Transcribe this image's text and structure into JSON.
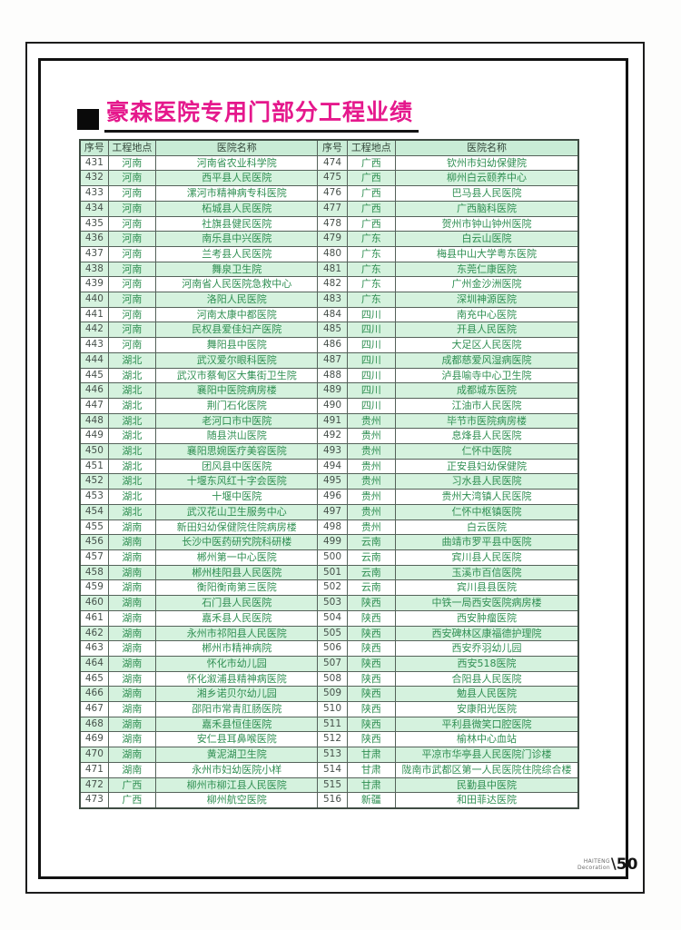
{
  "page": {
    "title": "豪森医院专用门部分工程业绩"
  },
  "footer": {
    "brand_top": "HAITENG",
    "brand_bottom": "Decoration",
    "page_number": "50"
  },
  "colors": {
    "title_magenta": "#e5188c",
    "header_bg": "#c9ecd6",
    "alt_row_bg": "#d5f2de",
    "table_text_green": "#2f8f52",
    "frame_black": "#111111"
  },
  "table": {
    "headers": [
      "序号",
      "工程地点",
      "医院名称"
    ],
    "left_rows": [
      [
        "431",
        "河南",
        "河南省农业科学院"
      ],
      [
        "432",
        "河南",
        "西平县人民医院"
      ],
      [
        "433",
        "河南",
        "漯河市精神病专科医院"
      ],
      [
        "434",
        "河南",
        "柘城县人民医院"
      ],
      [
        "435",
        "河南",
        "社旗县健民医院"
      ],
      [
        "436",
        "河南",
        "南乐县中兴医院"
      ],
      [
        "437",
        "河南",
        "兰考县人民医院"
      ],
      [
        "438",
        "河南",
        "舞泉卫生院"
      ],
      [
        "439",
        "河南",
        "河南省人民医院急救中心"
      ],
      [
        "440",
        "河南",
        "洛阳人民医院"
      ],
      [
        "441",
        "河南",
        "河南太康中都医院"
      ],
      [
        "442",
        "河南",
        "民权县爱佳妇产医院"
      ],
      [
        "443",
        "河南",
        "舞阳县中医院"
      ],
      [
        "444",
        "湖北",
        "武汉爱尔眼科医院"
      ],
      [
        "445",
        "湖北",
        "武汉市蔡甸区大集街卫生院"
      ],
      [
        "446",
        "湖北",
        "襄阳中医院病房楼"
      ],
      [
        "447",
        "湖北",
        "荆门石化医院"
      ],
      [
        "448",
        "湖北",
        "老河口市中医院"
      ],
      [
        "449",
        "湖北",
        "随县洪山医院"
      ],
      [
        "450",
        "湖北",
        "襄阳思婉医疗美容医院"
      ],
      [
        "451",
        "湖北",
        "团风县中医医院"
      ],
      [
        "452",
        "湖北",
        "十堰东风红十字会医院"
      ],
      [
        "453",
        "湖北",
        "十堰中医院"
      ],
      [
        "454",
        "湖北",
        "武汉花山卫生服务中心"
      ],
      [
        "455",
        "湖南",
        "新田妇幼保健院住院病房楼"
      ],
      [
        "456",
        "湖南",
        "长沙中医药研究院科研楼"
      ],
      [
        "457",
        "湖南",
        "郴州第一中心医院"
      ],
      [
        "458",
        "湖南",
        "郴州桂阳县人民医院"
      ],
      [
        "459",
        "湖南",
        "衡阳衡南第三医院"
      ],
      [
        "460",
        "湖南",
        "石门县人民医院"
      ],
      [
        "461",
        "湖南",
        "嘉禾县人民医院"
      ],
      [
        "462",
        "湖南",
        "永州市祁阳县人民医院"
      ],
      [
        "463",
        "湖南",
        "郴州市精神病院"
      ],
      [
        "464",
        "湖南",
        "怀化市幼儿园"
      ],
      [
        "465",
        "湖南",
        "怀化溆浦县精神病医院"
      ],
      [
        "466",
        "湖南",
        "湘乡诺贝尔幼儿园"
      ],
      [
        "467",
        "湖南",
        "邵阳市常青肛肠医院"
      ],
      [
        "468",
        "湖南",
        "嘉禾县恒佳医院"
      ],
      [
        "469",
        "湖南",
        "安仁县耳鼻喉医院"
      ],
      [
        "470",
        "湖南",
        "黄泥湖卫生院"
      ],
      [
        "471",
        "湖南",
        "永州市妇幼医院小样"
      ],
      [
        "472",
        "广西",
        "柳州市柳江县人民医院"
      ],
      [
        "473",
        "广西",
        "柳州航空医院"
      ]
    ],
    "right_rows": [
      [
        "474",
        "广西",
        "钦州市妇幼保健院"
      ],
      [
        "475",
        "广西",
        "柳州白云颐养中心"
      ],
      [
        "476",
        "广西",
        "巴马县人民医院"
      ],
      [
        "477",
        "广西",
        "广西脑科医院"
      ],
      [
        "478",
        "广西",
        "贺州市钟山钟州医院"
      ],
      [
        "479",
        "广东",
        "白云山医院"
      ],
      [
        "480",
        "广东",
        "梅县中山大学粤东医院"
      ],
      [
        "481",
        "广东",
        "东莞仁康医院"
      ],
      [
        "482",
        "广东",
        "广州金沙洲医院"
      ],
      [
        "483",
        "广东",
        "深圳神源医院"
      ],
      [
        "484",
        "四川",
        "南充中心医院"
      ],
      [
        "485",
        "四川",
        "开县人民医院"
      ],
      [
        "486",
        "四川",
        "大足区人民医院"
      ],
      [
        "487",
        "四川",
        "成都慈爱风湿病医院"
      ],
      [
        "488",
        "四川",
        "泸县喻寺中心卫生院"
      ],
      [
        "489",
        "四川",
        "成都城东医院"
      ],
      [
        "490",
        "四川",
        "江油市人民医院"
      ],
      [
        "491",
        "贵州",
        "毕节市医院病房楼"
      ],
      [
        "492",
        "贵州",
        "息烽县人民医院"
      ],
      [
        "493",
        "贵州",
        "仁怀中医院"
      ],
      [
        "494",
        "贵州",
        "正安县妇幼保健院"
      ],
      [
        "495",
        "贵州",
        "习水县人民医院"
      ],
      [
        "496",
        "贵州",
        "贵州大湾镇人民医院"
      ],
      [
        "497",
        "贵州",
        "仁怀中枢镇医院"
      ],
      [
        "498",
        "贵州",
        "白云医院"
      ],
      [
        "499",
        "云南",
        "曲靖市罗平县中医院"
      ],
      [
        "500",
        "云南",
        "宾川县人民医院"
      ],
      [
        "501",
        "云南",
        "玉溪市百信医院"
      ],
      [
        "502",
        "云南",
        "宾川县县医院"
      ],
      [
        "503",
        "陕西",
        "中铁一局西安医院病房楼"
      ],
      [
        "504",
        "陕西",
        "西安肿瘤医院"
      ],
      [
        "505",
        "陕西",
        "西安碑林区康福德护理院"
      ],
      [
        "506",
        "陕西",
        "西安乔羽幼儿园"
      ],
      [
        "507",
        "陕西",
        "西安518医院"
      ],
      [
        "508",
        "陕西",
        "合阳县人民医院"
      ],
      [
        "509",
        "陕西",
        "勉县人民医院"
      ],
      [
        "510",
        "陕西",
        "安康阳光医院"
      ],
      [
        "511",
        "陕西",
        "平利县微笑口腔医院"
      ],
      [
        "512",
        "陕西",
        "榆林中心血站"
      ],
      [
        "513",
        "甘肃",
        "平凉市华亭县人民医院门诊楼"
      ],
      [
        "514",
        "甘肃",
        "陇南市武都区第一人民医院住院综合楼"
      ],
      [
        "515",
        "甘肃",
        "民勤县中医院"
      ],
      [
        "516",
        "新疆",
        "和田菲达医院"
      ]
    ]
  }
}
